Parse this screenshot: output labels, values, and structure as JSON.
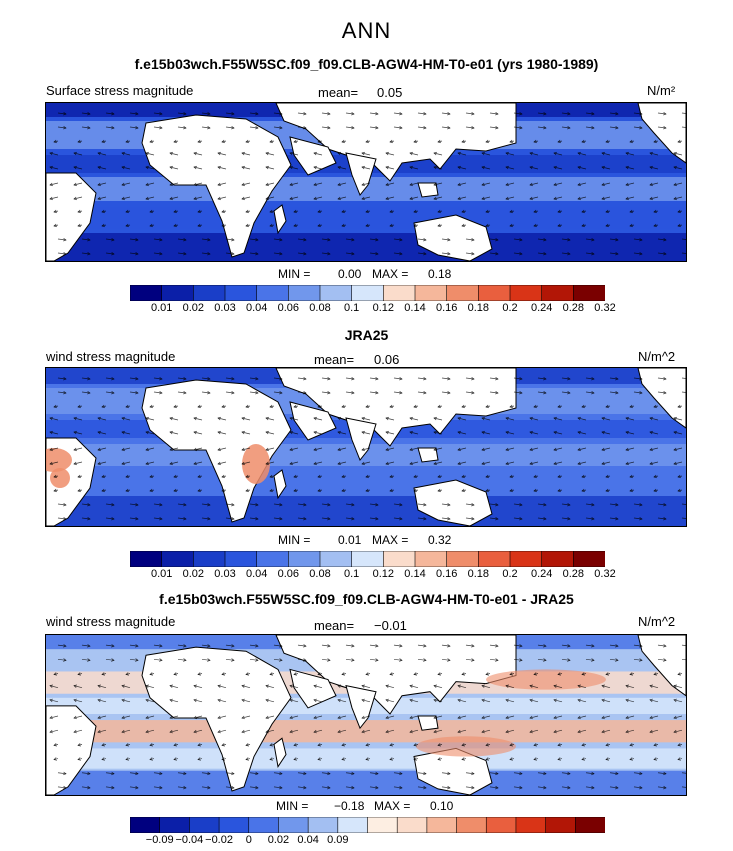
{
  "figure": {
    "title": "ANN"
  },
  "panels": [
    {
      "title": "f.e15b03wch.F55W5SC.f09_f09.CLB-AGW4-HM-T0-e01 (yrs 1980-1989)",
      "field_label": "Surface stress magnitude",
      "mean_label": "mean=",
      "mean_value": "0.05",
      "units": "N/m²",
      "min_label": "MIN =",
      "min_value": "0.00",
      "max_label": "MAX =",
      "max_value": "0.18",
      "colorbar_ticks": [
        "0.01",
        "0.02",
        "0.03",
        "0.04",
        "0.06",
        "0.08",
        "0.1",
        "0.12",
        "0.14",
        "0.16",
        "0.18",
        "0.2",
        "0.24",
        "0.28",
        "0.32"
      ]
    },
    {
      "title": "JRA25",
      "field_label": "wind stress magnitude",
      "mean_label": "mean=",
      "mean_value": "0.06",
      "units": "N/m^2",
      "min_label": "MIN =",
      "min_value": "0.01",
      "max_label": "MAX =",
      "max_value": "0.32",
      "colorbar_ticks": [
        "0.01",
        "0.02",
        "0.03",
        "0.04",
        "0.06",
        "0.08",
        "0.1",
        "0.12",
        "0.14",
        "0.16",
        "0.18",
        "0.2",
        "0.24",
        "0.28",
        "0.32"
      ]
    },
    {
      "title": "f.e15b03wch.F55W5SC.f09_f09.CLB-AGW4-HM-T0-e01 - JRA25",
      "field_label": "wind stress magnitude",
      "mean_label": "mean=",
      "mean_value": "−0.01",
      "units": "N/m^2",
      "min_label": "MIN =",
      "min_value": "−0.18",
      "max_label": "MAX =",
      "max_value": "0.10",
      "colorbar_ticks": [
        "−0.09",
        "−0.04",
        "−0.02",
        "0",
        "0.02",
        "0.04",
        "0.09"
      ]
    }
  ],
  "colors": {
    "abs_scale": [
      "#00007f",
      "#0b1fa8",
      "#1a3ec8",
      "#2a55dd",
      "#4a74e8",
      "#7197ec",
      "#a3bff2",
      "#d6e6fb",
      "#fadccb",
      "#f5b79b",
      "#ef8d6a",
      "#e95f3e",
      "#d93417",
      "#b21606",
      "#7a0000"
    ],
    "diff_scale": [
      "#00007f",
      "#0b1fa8",
      "#1a3ec8",
      "#2a55dd",
      "#4a74e8",
      "#7197ec",
      "#a3bff2",
      "#d6e6fb",
      "#fdeee2",
      "#fadccb",
      "#f5b79b",
      "#ef8d6a",
      "#e95f3e",
      "#d93417",
      "#b21606",
      "#7a0000"
    ],
    "land": "#ffffff",
    "coast": "#000000"
  },
  "chart_data": [
    {
      "type": "heatmap",
      "title": "f.e15b03wch.F55W5SC.f09_f09.CLB-AGW4-HM-T0-e01 (yrs 1980-1989)",
      "variable": "Surface stress magnitude",
      "units": "N/m²",
      "mean": 0.05,
      "min": 0.0,
      "max": 0.18,
      "levels": [
        0.01,
        0.02,
        0.03,
        0.04,
        0.06,
        0.08,
        0.1,
        0.12,
        0.14,
        0.16,
        0.18,
        0.2,
        0.24,
        0.28,
        0.32
      ],
      "overlay": "wind stress vectors"
    },
    {
      "type": "heatmap",
      "title": "JRA25",
      "variable": "wind stress magnitude",
      "units": "N/m^2",
      "mean": 0.06,
      "min": 0.01,
      "max": 0.32,
      "levels": [
        0.01,
        0.02,
        0.03,
        0.04,
        0.06,
        0.08,
        0.1,
        0.12,
        0.14,
        0.16,
        0.18,
        0.2,
        0.24,
        0.28,
        0.32
      ],
      "overlay": "wind stress vectors"
    },
    {
      "type": "heatmap",
      "title": "f.e15b03wch.F55W5SC.f09_f09.CLB-AGW4-HM-T0-e01 - JRA25",
      "variable": "wind stress magnitude",
      "units": "N/m^2",
      "mean": -0.01,
      "min": -0.18,
      "max": 0.1,
      "levels": [
        -0.09,
        -0.04,
        -0.02,
        0,
        0.02,
        0.04,
        0.09
      ],
      "overlay": "wind stress difference vectors"
    }
  ]
}
